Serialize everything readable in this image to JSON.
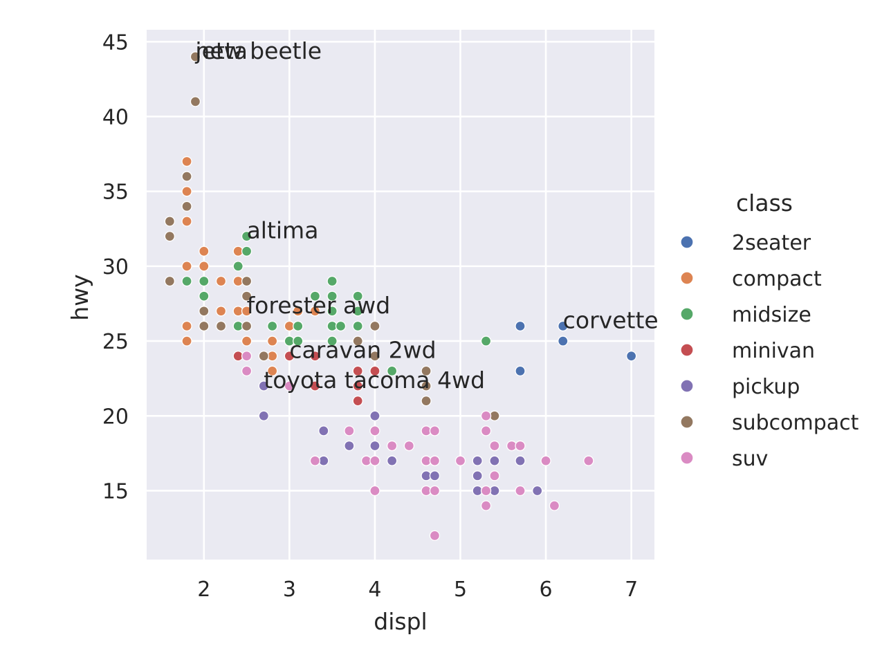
{
  "chart_data": {
    "type": "scatter",
    "title": "",
    "xlabel": "displ",
    "ylabel": "hwy",
    "xlim": [
      1.33,
      7.27
    ],
    "ylim": [
      10.4,
      45.8
    ],
    "xticks": [
      "2",
      "3",
      "4",
      "5",
      "6",
      "7"
    ],
    "yticks": [
      "15",
      "20",
      "25",
      "30",
      "35",
      "40",
      "45"
    ],
    "grid": true,
    "legend_title": "class",
    "legend_position": "right",
    "series": [
      {
        "name": "2seater",
        "color": "#4c72b0",
        "points": [
          [
            5.7,
            26
          ],
          [
            5.7,
            23
          ],
          [
            6.2,
            26
          ],
          [
            6.2,
            25
          ],
          [
            7.0,
            24
          ]
        ]
      },
      {
        "name": "compact",
        "color": "#dd8452",
        "points": [
          [
            1.8,
            37
          ],
          [
            1.8,
            35
          ],
          [
            1.8,
            33
          ],
          [
            1.8,
            30
          ],
          [
            1.8,
            26
          ],
          [
            1.8,
            25
          ],
          [
            2.0,
            31
          ],
          [
            2.0,
            30
          ],
          [
            2.2,
            29
          ],
          [
            2.2,
            27
          ],
          [
            2.4,
            31
          ],
          [
            2.4,
            29
          ],
          [
            2.4,
            27
          ],
          [
            2.5,
            27
          ],
          [
            2.5,
            25
          ],
          [
            2.8,
            25
          ],
          [
            2.8,
            24
          ],
          [
            2.8,
            23
          ],
          [
            3.0,
            26
          ],
          [
            3.0,
            25
          ],
          [
            3.1,
            27
          ],
          [
            3.3,
            27
          ]
        ]
      },
      {
        "name": "midsize",
        "color": "#55a868",
        "points": [
          [
            1.8,
            29
          ],
          [
            2.0,
            29
          ],
          [
            2.0,
            28
          ],
          [
            2.4,
            30
          ],
          [
            2.4,
            26
          ],
          [
            2.5,
            32
          ],
          [
            2.5,
            31
          ],
          [
            2.8,
            26
          ],
          [
            3.0,
            25
          ],
          [
            3.1,
            26
          ],
          [
            3.1,
            25
          ],
          [
            3.3,
            28
          ],
          [
            3.5,
            29
          ],
          [
            3.5,
            28
          ],
          [
            3.5,
            27
          ],
          [
            3.5,
            26
          ],
          [
            3.5,
            25
          ],
          [
            3.6,
            26
          ],
          [
            3.8,
            28
          ],
          [
            3.8,
            27
          ],
          [
            3.8,
            26
          ],
          [
            4.2,
            23
          ],
          [
            5.3,
            25
          ]
        ]
      },
      {
        "name": "minivan",
        "color": "#c44e52",
        "points": [
          [
            2.4,
            24
          ],
          [
            3.0,
            24
          ],
          [
            3.3,
            24
          ],
          [
            3.3,
            22
          ],
          [
            3.8,
            23
          ],
          [
            3.8,
            22
          ],
          [
            3.8,
            21
          ],
          [
            4.0,
            23
          ]
        ]
      },
      {
        "name": "pickup",
        "color": "#8172b3",
        "points": [
          [
            2.7,
            22
          ],
          [
            2.7,
            20
          ],
          [
            3.4,
            19
          ],
          [
            3.4,
            17
          ],
          [
            3.7,
            18
          ],
          [
            4.0,
            20
          ],
          [
            4.0,
            18
          ],
          [
            4.0,
            17
          ],
          [
            4.2,
            17
          ],
          [
            4.6,
            17
          ],
          [
            4.6,
            16
          ],
          [
            4.7,
            17
          ],
          [
            4.7,
            16
          ],
          [
            5.2,
            17
          ],
          [
            5.2,
            16
          ],
          [
            5.2,
            15
          ],
          [
            5.4,
            17
          ],
          [
            5.4,
            15
          ],
          [
            5.7,
            17
          ],
          [
            5.9,
            15
          ]
        ]
      },
      {
        "name": "subcompact",
        "color": "#937860",
        "points": [
          [
            1.6,
            33
          ],
          [
            1.6,
            32
          ],
          [
            1.6,
            29
          ],
          [
            1.8,
            36
          ],
          [
            1.8,
            34
          ],
          [
            1.9,
            44
          ],
          [
            1.9,
            41
          ],
          [
            2.0,
            27
          ],
          [
            2.0,
            26
          ],
          [
            2.2,
            26
          ],
          [
            2.5,
            29
          ],
          [
            2.5,
            28
          ],
          [
            2.5,
            26
          ],
          [
            2.7,
            24
          ],
          [
            3.8,
            25
          ],
          [
            4.0,
            26
          ],
          [
            4.0,
            24
          ],
          [
            4.6,
            23
          ],
          [
            4.6,
            22
          ],
          [
            4.6,
            21
          ],
          [
            5.4,
            20
          ]
        ]
      },
      {
        "name": "suv",
        "color": "#da8bc3",
        "points": [
          [
            2.5,
            24
          ],
          [
            2.5,
            23
          ],
          [
            3.0,
            22
          ],
          [
            3.3,
            17
          ],
          [
            3.7,
            19
          ],
          [
            3.9,
            17
          ],
          [
            4.0,
            19
          ],
          [
            4.0,
            17
          ],
          [
            4.0,
            15
          ],
          [
            4.2,
            18
          ],
          [
            4.4,
            18
          ],
          [
            4.6,
            19
          ],
          [
            4.6,
            17
          ],
          [
            4.6,
            15
          ],
          [
            4.7,
            19
          ],
          [
            4.7,
            17
          ],
          [
            4.7,
            15
          ],
          [
            4.7,
            12
          ],
          [
            5.0,
            17
          ],
          [
            5.3,
            20
          ],
          [
            5.3,
            19
          ],
          [
            5.3,
            15
          ],
          [
            5.3,
            14
          ],
          [
            5.4,
            18
          ],
          [
            5.4,
            16
          ],
          [
            5.6,
            18
          ],
          [
            5.7,
            18
          ],
          [
            5.7,
            15
          ],
          [
            6.0,
            17
          ],
          [
            6.1,
            14
          ],
          [
            6.5,
            17
          ]
        ]
      }
    ],
    "annotations": [
      {
        "text": "jetta",
        "x": 1.9,
        "y": 44
      },
      {
        "text": "new beetle",
        "x": 1.9,
        "y": 44
      },
      {
        "text": "altima",
        "x": 2.5,
        "y": 32
      },
      {
        "text": "forester awd",
        "x": 2.5,
        "y": 27
      },
      {
        "text": "caravan 2wd",
        "x": 3.0,
        "y": 24
      },
      {
        "text": "toyota tacoma 4wd",
        "x": 2.7,
        "y": 22
      },
      {
        "text": "corvette",
        "x": 6.2,
        "y": 26
      }
    ]
  }
}
